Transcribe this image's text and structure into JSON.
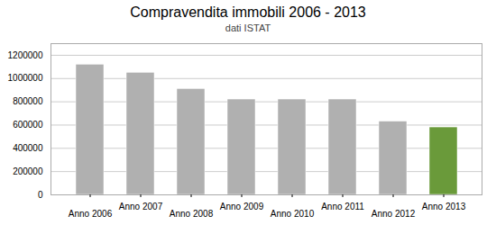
{
  "chart_data": {
    "type": "bar",
    "title": "Compravendita immobili 2006 - 2013",
    "subtitle": "dati ISTAT",
    "categories": [
      "Anno 2006",
      "Anno 2007",
      "Anno 2008",
      "Anno 2009",
      "Anno 2010",
      "Anno 2011",
      "Anno 2012",
      "Anno 2013"
    ],
    "values": [
      1120000,
      1050000,
      910000,
      820000,
      820000,
      820000,
      630000,
      580000
    ],
    "colors": [
      "#b0b0b0",
      "#b0b0b0",
      "#b0b0b0",
      "#b0b0b0",
      "#b0b0b0",
      "#b0b0b0",
      "#b0b0b0",
      "#6a9a3a"
    ],
    "ylim": [
      0,
      1300000
    ],
    "yticks": [
      0,
      200000,
      400000,
      600000,
      800000,
      1000000,
      1200000
    ],
    "grid": true
  }
}
